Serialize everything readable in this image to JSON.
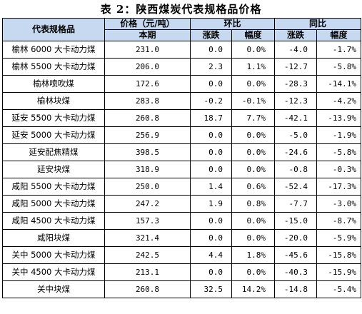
{
  "title": "表 2：陕西煤炭代表规格品价格",
  "header": {
    "col_name": "代表规格品",
    "price_label": "价格（元/吨）",
    "current_label": "本期",
    "mom_label": "环比",
    "yoy_label": "同比",
    "change_label": "涨跌",
    "pct_label": "幅度"
  },
  "rows": [
    {
      "name": "榆林 6000 大卡动力煤",
      "price": "231.0",
      "mom_change": "0.0",
      "mom_pct": "0.0%",
      "yoy_change": "-4.0",
      "yoy_pct": "-1.7%"
    },
    {
      "name": "榆林 5500 大卡动力煤",
      "price": "206.0",
      "mom_change": "2.3",
      "mom_pct": "1.1%",
      "yoy_change": "-12.7",
      "yoy_pct": "-5.8%"
    },
    {
      "name": "榆林喷吹煤",
      "price": "172.6",
      "mom_change": "0.0",
      "mom_pct": "0.0%",
      "yoy_change": "-28.3",
      "yoy_pct": "-14.1%"
    },
    {
      "name": "榆林块煤",
      "price": "283.8",
      "mom_change": "-0.2",
      "mom_pct": "-0.1%",
      "yoy_change": "-12.3",
      "yoy_pct": "-4.2%"
    },
    {
      "name": "延安 5500 大卡动力煤",
      "price": "260.8",
      "mom_change": "18.7",
      "mom_pct": "7.7%",
      "yoy_change": "-42.1",
      "yoy_pct": "-13.9%"
    },
    {
      "name": "延安 5000 大卡动力煤",
      "price": "256.9",
      "mom_change": "0.0",
      "mom_pct": "0.0%",
      "yoy_change": "-5.0",
      "yoy_pct": "-1.9%"
    },
    {
      "name": "延安配焦精煤",
      "price": "398.5",
      "mom_change": "0.0",
      "mom_pct": "0.0%",
      "yoy_change": "-24.6",
      "yoy_pct": "-5.8%"
    },
    {
      "name": "延安块煤",
      "price": "318.9",
      "mom_change": "0.0",
      "mom_pct": "0.0%",
      "yoy_change": "-0.8",
      "yoy_pct": "-0.3%"
    },
    {
      "name": "咸阳 5500 大卡动力煤",
      "price": "250.0",
      "mom_change": "1.4",
      "mom_pct": "0.6%",
      "yoy_change": "-52.4",
      "yoy_pct": "-17.3%"
    },
    {
      "name": "咸阳 5000 大卡动力煤",
      "price": "247.2",
      "mom_change": "1.9",
      "mom_pct": "0.8%",
      "yoy_change": "-7.7",
      "yoy_pct": "-3.0%"
    },
    {
      "name": "咸阳 4500 大卡动力煤",
      "price": "157.3",
      "mom_change": "0.0",
      "mom_pct": "0.0%",
      "yoy_change": "-15.0",
      "yoy_pct": "-8.7%"
    },
    {
      "name": "咸阳块煤",
      "price": "321.4",
      "mom_change": "0.0",
      "mom_pct": "0.0%",
      "yoy_change": "-20.0",
      "yoy_pct": "-5.9%"
    },
    {
      "name": "关中 5000 大卡动力煤",
      "price": "242.5",
      "mom_change": "4.4",
      "mom_pct": "1.8%",
      "yoy_change": "-45.6",
      "yoy_pct": "-15.8%"
    },
    {
      "name": "关中 4500 大卡动力煤",
      "price": "213.1",
      "mom_change": "0.0",
      "mom_pct": "0.0%",
      "yoy_change": "-40.3",
      "yoy_pct": "-15.9%"
    },
    {
      "name": "关中块煤",
      "price": "260.8",
      "mom_change": "32.5",
      "mom_pct": "14.2%",
      "yoy_change": "-14.8",
      "yoy_pct": "-5.4%"
    }
  ]
}
